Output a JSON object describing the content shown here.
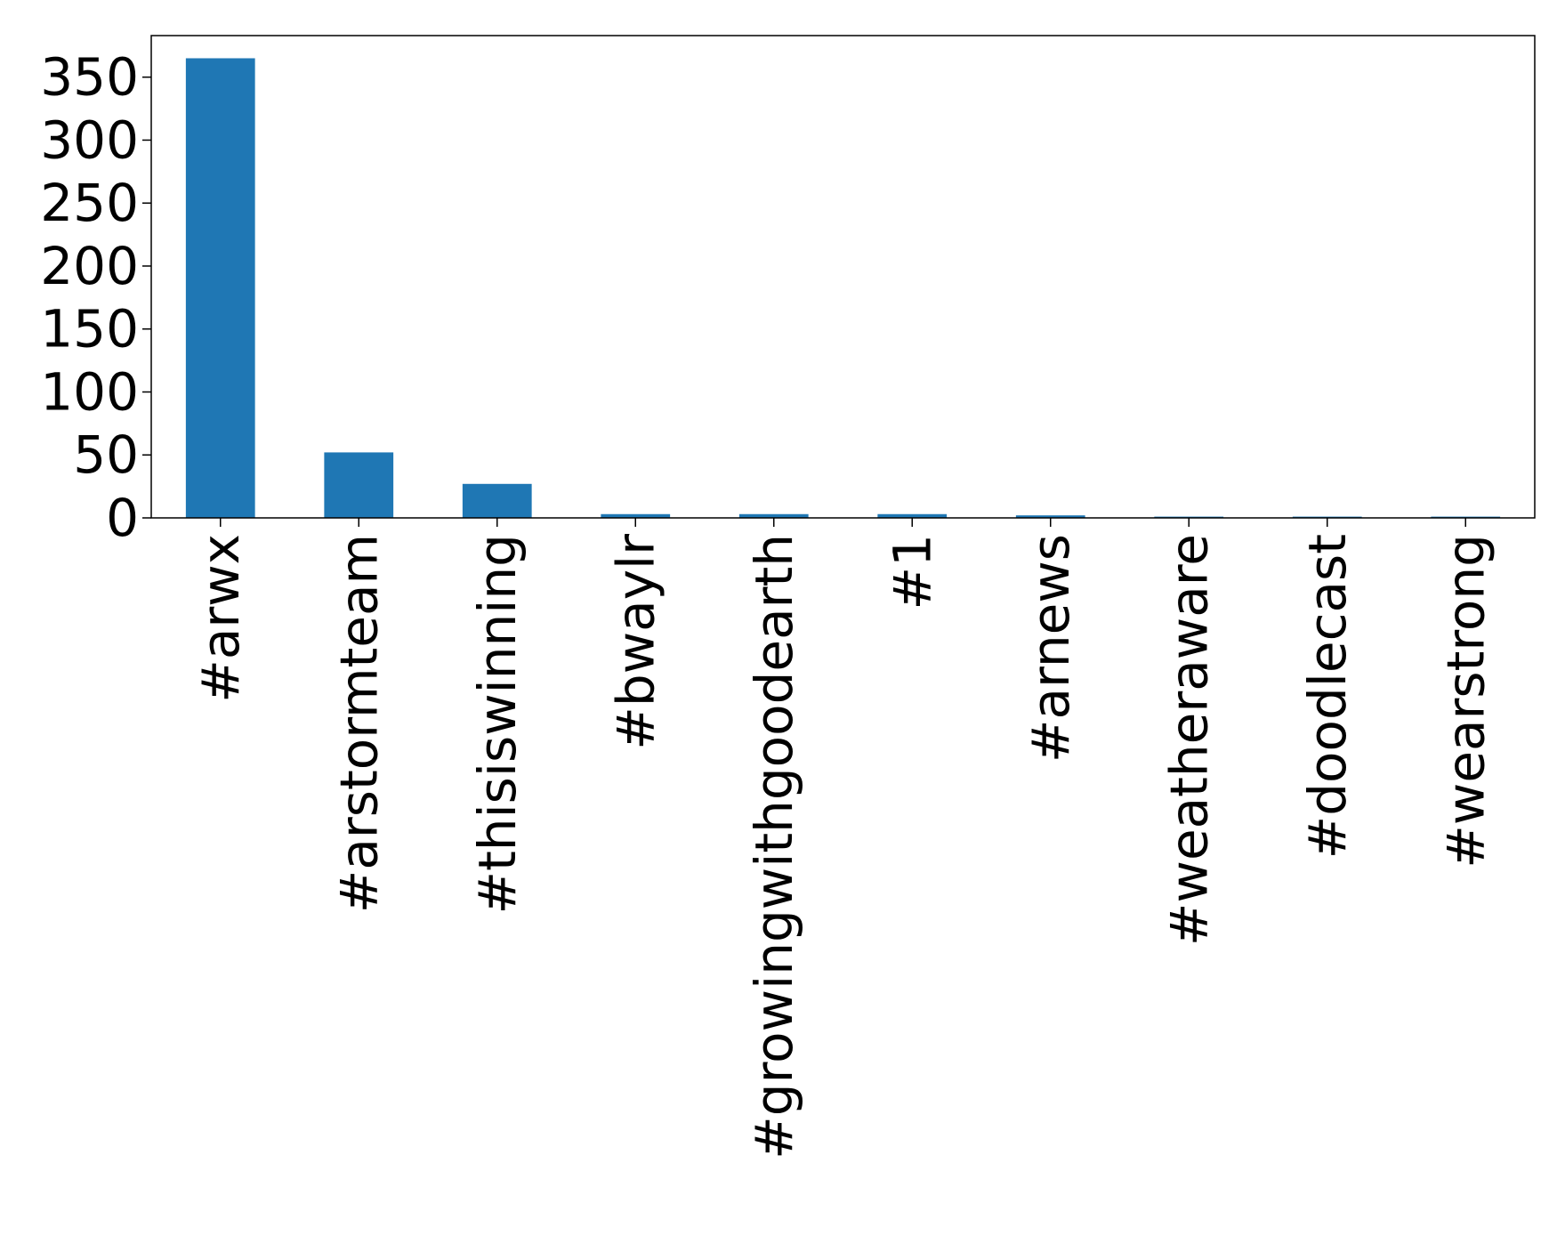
{
  "chart_data": {
    "type": "bar",
    "title": "",
    "xlabel": "",
    "ylabel": "",
    "categories": [
      "#arwx",
      "#arstormteam",
      "#thisiswinning",
      "#bwaylr",
      "#growingwithgoodearth",
      "#1",
      "#arnews",
      "#weatheraware",
      "#doodlecast",
      "#wearstrong"
    ],
    "values": [
      365,
      52,
      27,
      3,
      3,
      3,
      2,
      1,
      1,
      1
    ],
    "ylim": [
      0,
      383
    ],
    "yticks": [
      0,
      50,
      100,
      150,
      200,
      250,
      300,
      350
    ],
    "grid": false,
    "legend": "none",
    "bar_color": "#1f77b4"
  }
}
